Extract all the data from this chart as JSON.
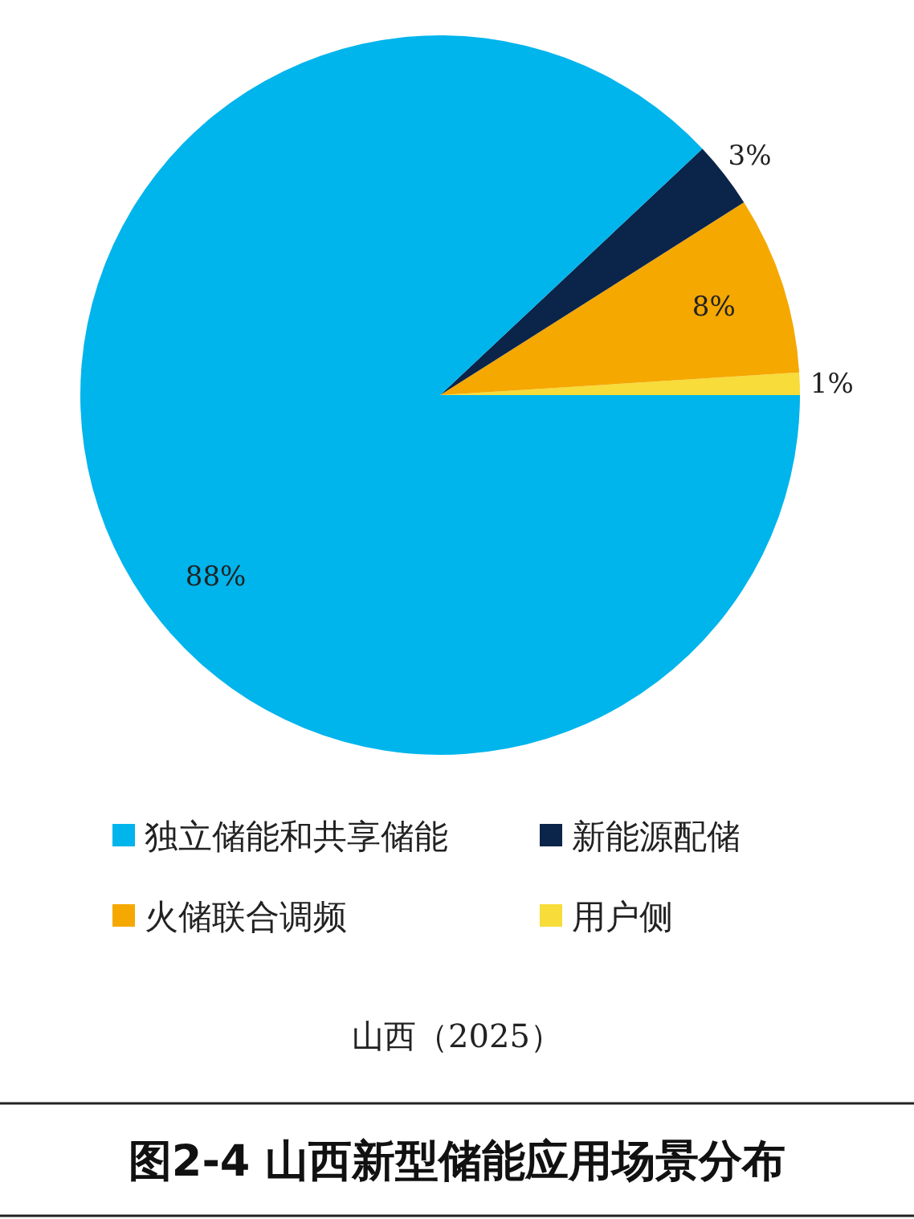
{
  "chart_data": {
    "type": "pie",
    "title": "图2-4  山西新型储能应用场景分布",
    "subtitle": "山西（2025）",
    "categories": [
      "独立储能和共享储能",
      "新能源配储",
      "火储联合调频",
      "用户侧"
    ],
    "values": [
      88,
      3,
      8,
      1
    ],
    "colors": [
      "#00b4ec",
      "#0b2449",
      "#f5a800",
      "#f7dc3a"
    ],
    "value_labels": [
      "88%",
      "3%",
      "8%",
      "1%"
    ],
    "legend": "bottom"
  }
}
